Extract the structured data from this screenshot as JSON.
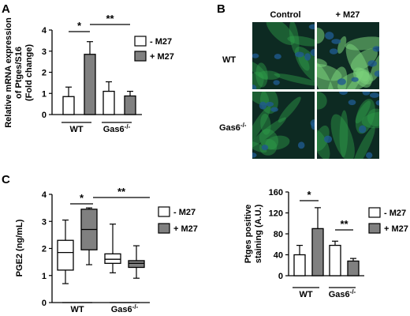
{
  "panels": {
    "A": "A",
    "B": "B",
    "C": "C"
  },
  "micrographs": {
    "col_labels": [
      "Control",
      "+ M27"
    ],
    "row_labels": [
      "WT",
      "Gas6"
    ],
    "row2_superscript": "-/-",
    "colors": {
      "bg": "#0d2a22",
      "cell": "#2f9e4a",
      "nuc": "#1f5a8f",
      "bright": "#7ad27a"
    }
  },
  "chart_data": [
    {
      "type": "bar",
      "ylabel_lines": [
        "Relative mRNA expression",
        "of Ptges/S16",
        "(Fold change)"
      ],
      "ylim": [
        0,
        4
      ],
      "yticks": [
        "0",
        "1",
        "2",
        "3",
        "4"
      ],
      "groups": [
        "WT",
        "Gas6"
      ],
      "group_superscripts": [
        "",
        "-/-"
      ],
      "series": [
        {
          "name": "- M27",
          "values": [
            0.85,
            1.1
          ],
          "errors": [
            0.45,
            0.45
          ],
          "color": "#ffffff"
        },
        {
          "name": "+ M27",
          "values": [
            2.85,
            0.88
          ],
          "errors": [
            0.6,
            0.22
          ],
          "color": "#808080"
        }
      ],
      "significance": [
        {
          "label": "*"
        },
        {
          "label": "**"
        }
      ]
    },
    {
      "type": "box",
      "ylabel": "PGE2 (ng/mL)",
      "ylim": [
        0,
        4
      ],
      "yticks": [
        "0",
        "1",
        "2",
        "3",
        "4"
      ],
      "groups": [
        "WT",
        "Gas6"
      ],
      "group_superscripts": [
        "",
        "-/-"
      ],
      "series": [
        {
          "name": "- M27",
          "color": "#ffffff",
          "stats": [
            {
              "min": 0.7,
              "q1": 1.2,
              "median": 1.85,
              "q3": 2.3,
              "max": 3.05
            },
            {
              "min": 1.1,
              "q1": 1.45,
              "median": 1.6,
              "q3": 1.8,
              "max": 2.9
            }
          ]
        },
        {
          "name": "+ M27",
          "color": "#808080",
          "stats": [
            {
              "min": 1.4,
              "q1": 1.95,
              "median": 2.7,
              "q3": 3.45,
              "max": 3.5
            },
            {
              "min": 0.9,
              "q1": 1.3,
              "median": 1.45,
              "q3": 1.55,
              "max": 2.1
            }
          ]
        }
      ],
      "significance": [
        {
          "label": "*"
        },
        {
          "label": "**"
        }
      ]
    },
    {
      "type": "bar",
      "ylabel_lines": [
        "Ptges positive",
        "staining (A.U.)"
      ],
      "ylim": [
        0,
        160
      ],
      "yticks": [
        "0",
        "40",
        "80",
        "120",
        "160"
      ],
      "groups": [
        "WT",
        "Gas6"
      ],
      "group_superscripts": [
        "",
        "-/-"
      ],
      "series": [
        {
          "name": "- M27",
          "values": [
            40,
            58
          ],
          "errors": [
            18,
            8
          ],
          "color": "#ffffff"
        },
        {
          "name": "+ M27",
          "values": [
            90,
            28
          ],
          "errors": [
            40,
            5
          ],
          "color": "#808080"
        }
      ],
      "significance": [
        {
          "label": "*"
        },
        {
          "label": "**"
        }
      ]
    }
  ]
}
